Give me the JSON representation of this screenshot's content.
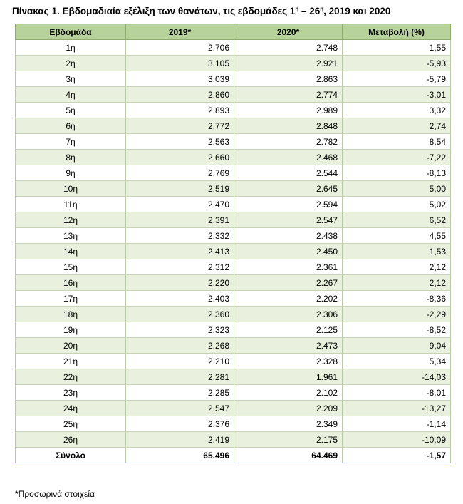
{
  "title": {
    "prefix": "Πίνακας 1. Εβδομαδιαία εξέλιξη των θανάτων, τις εβδομάδες 1",
    "sup1": "η",
    "mid": " – 26",
    "sup2": "η",
    "suffix": ", 2019 και 2020"
  },
  "table": {
    "headers": [
      "Εβδομάδα",
      "2019*",
      "2020*",
      "Μεταβολή (%)"
    ],
    "rows": [
      [
        "1η",
        "2.706",
        "2.748",
        "1,55"
      ],
      [
        "2η",
        "3.105",
        "2.921",
        "-5,93"
      ],
      [
        "3η",
        "3.039",
        "2.863",
        "-5,79"
      ],
      [
        "4η",
        "2.860",
        "2.774",
        "-3,01"
      ],
      [
        "5η",
        "2.893",
        "2.989",
        "3,32"
      ],
      [
        "6η",
        "2.772",
        "2.848",
        "2,74"
      ],
      [
        "7η",
        "2.563",
        "2.782",
        "8,54"
      ],
      [
        "8η",
        "2.660",
        "2.468",
        "-7,22"
      ],
      [
        "9η",
        "2.769",
        "2.544",
        "-8,13"
      ],
      [
        "10η",
        "2.519",
        "2.645",
        "5,00"
      ],
      [
        "11η",
        "2.470",
        "2.594",
        "5,02"
      ],
      [
        "12η",
        "2.391",
        "2.547",
        "6,52"
      ],
      [
        "13η",
        "2.332",
        "2.438",
        "4,55"
      ],
      [
        "14η",
        "2.413",
        "2.450",
        "1,53"
      ],
      [
        "15η",
        "2.312",
        "2.361",
        "2,12"
      ],
      [
        "16η",
        "2.220",
        "2.267",
        "2,12"
      ],
      [
        "17η",
        "2.403",
        "2.202",
        "-8,36"
      ],
      [
        "18η",
        "2.360",
        "2.306",
        "-2,29"
      ],
      [
        "19η",
        "2.323",
        "2.125",
        "-8,52"
      ],
      [
        "20η",
        "2.268",
        "2.473",
        "9,04"
      ],
      [
        "21η",
        "2.210",
        "2.328",
        "5,34"
      ],
      [
        "22η",
        "2.281",
        "1.961",
        "-14,03"
      ],
      [
        "23η",
        "2.285",
        "2.102",
        "-8,01"
      ],
      [
        "24η",
        "2.547",
        "2.209",
        "-13,27"
      ],
      [
        "25η",
        "2.376",
        "2.349",
        "-1,14"
      ],
      [
        "26η",
        "2.419",
        "2.175",
        "-10,09"
      ]
    ],
    "total": [
      "Σύνολο",
      "65.496",
      "64.469",
      "-1,57"
    ]
  },
  "footnote": "*Προσωρινά στοιχεία",
  "colors": {
    "header_bg": "#b7d29b",
    "stripe_bg": "#e9f1de",
    "border": "#8fab6f"
  }
}
